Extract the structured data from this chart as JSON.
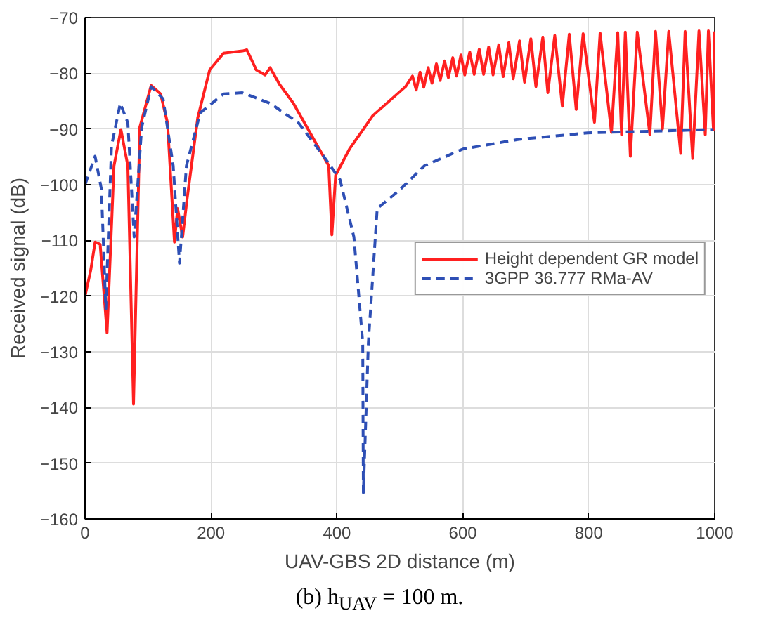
{
  "chart_data": {
    "type": "line",
    "xlabel": "UAV-GBS 2D distance (m)",
    "ylabel": "Received signal (dB)",
    "annotations": [
      "(b) h$_{UAV}$ = 100 m."
    ],
    "xlim": [
      0,
      1000
    ],
    "xticks": [
      0,
      200,
      400,
      600,
      800,
      1000
    ],
    "ylim": [
      -160,
      -70
    ],
    "yticks": [
      -160,
      -150,
      -140,
      -130,
      -120,
      -110,
      -100,
      -90,
      -80,
      -70
    ],
    "grid": true,
    "legend": "right",
    "series": [
      {
        "name": "Height dependent GR model",
        "color": "#ff2020",
        "line_style": "solid",
        "x": [
          0,
          9,
          16,
          24,
          35,
          46,
          57,
          68,
          77,
          87,
          105,
          120,
          131,
          142,
          147,
          155,
          162,
          179,
          198,
          220,
          250,
          257,
          272,
          286,
          294,
          309,
          331,
          361,
          387,
          392,
          398,
          420,
          457,
          509,
          520,
          526,
          532,
          538,
          545,
          551,
          558,
          564,
          571,
          577,
          584,
          590,
          597,
          603,
          611,
          618,
          626,
          633,
          641,
          648,
          657,
          664,
          673,
          680,
          690,
          698,
          708,
          716,
          727,
          735,
          746,
          758,
          769,
          780,
          791,
          809,
          818,
          836,
          846,
          852,
          858,
          866,
          877,
          897,
          906,
          917,
          927,
          946,
          953,
          965,
          975,
          985,
          990,
          998,
          1000
        ],
        "values": [
          -120,
          -115.4,
          -110.3,
          -110.7,
          -126.6,
          -96.6,
          -90.1,
          -96.6,
          -139.4,
          -89.7,
          -82.2,
          -83.7,
          -88.9,
          -110.3,
          -104.3,
          -109.4,
          -102.6,
          -88,
          -79.4,
          -76.4,
          -76,
          -75.8,
          -79.4,
          -80.3,
          -79,
          -82,
          -85.4,
          -91.4,
          -96.6,
          -109,
          -98.3,
          -93.6,
          -87.6,
          -82.4,
          -80.5,
          -83,
          -79.8,
          -82.5,
          -79,
          -81.8,
          -78.3,
          -81.3,
          -77.8,
          -80.8,
          -77.2,
          -80.5,
          -76.7,
          -80.3,
          -76.2,
          -80.2,
          -75.7,
          -80.2,
          -75.3,
          -80.3,
          -74.9,
          -80.6,
          -74.5,
          -81,
          -74.2,
          -81.6,
          -73.8,
          -82.4,
          -73.5,
          -83.5,
          -73.2,
          -85.9,
          -73,
          -86.5,
          -72.9,
          -88.8,
          -72.8,
          -90.6,
          -72.7,
          -91,
          -72.6,
          -94.9,
          -72.6,
          -91,
          -72.5,
          -90,
          -72.5,
          -94.4,
          -72.5,
          -95.3,
          -72.4,
          -91,
          -72.4,
          -90.1,
          -72.5
        ]
      },
      {
        "name": "3GPP 36.777 RMa-AV",
        "color": "#2e4fb5",
        "line_style": "dashed",
        "x": [
          0,
          16,
          26,
          33,
          42,
          56,
          68,
          78,
          90,
          105,
          124,
          140,
          150,
          161,
          183,
          220,
          250,
          294,
          339,
          379,
          405,
          427,
          441,
          442,
          450,
          464,
          501,
          539,
          600,
          687,
          798,
          998
        ],
        "values": [
          -100,
          -94.9,
          -100.8,
          -122.3,
          -93.1,
          -85.4,
          -88.9,
          -109.4,
          -89.7,
          -82.4,
          -84.6,
          -96.6,
          -114.1,
          -96.6,
          -87.1,
          -83.7,
          -83.5,
          -85.4,
          -88.9,
          -94.9,
          -99.1,
          -109.4,
          -128.3,
          -155.3,
          -128.3,
          -104.3,
          -100.8,
          -96.6,
          -93.6,
          -91.9,
          -90.7,
          -90.1
        ]
      }
    ]
  }
}
